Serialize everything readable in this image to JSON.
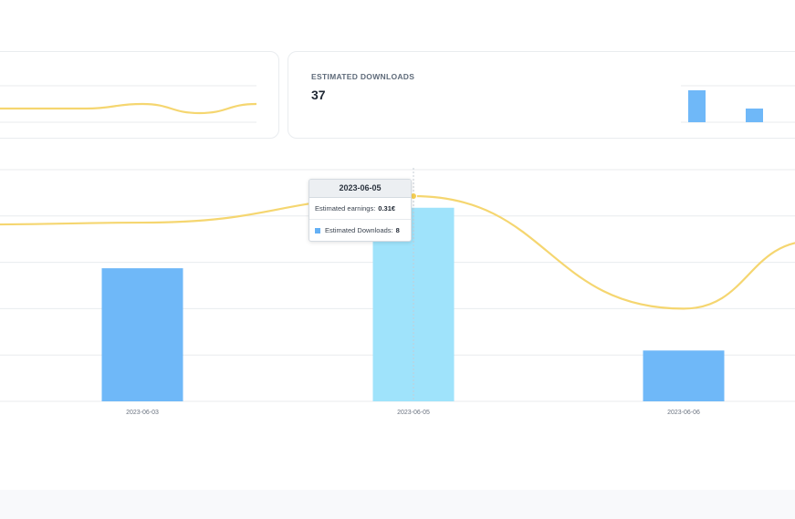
{
  "cards": {
    "earnings": {
      "title": "",
      "value": ""
    },
    "downloads": {
      "title": "ESTIMATED DOWNLOADS",
      "value": "37"
    }
  },
  "colors": {
    "bar": "#6fb8f8",
    "bar_highlight": "#9fe3fb",
    "line": "#f5d670",
    "grid": "#e8ebee"
  },
  "chart_data": [
    {
      "type": "line",
      "x": [
        0,
        1,
        2,
        3,
        4,
        5
      ],
      "values": [
        3,
        3,
        3,
        4,
        2,
        4
      ],
      "ylim": [
        0,
        8
      ]
    },
    {
      "type": "bar",
      "values": [
        7,
        3
      ],
      "ylim": [
        0,
        8
      ]
    },
    {
      "type": "bar",
      "categories": [
        "2023-06-03",
        "2023-06-05",
        "2023-06-06"
      ],
      "series": [
        {
          "name": "Estimated Downloads",
          "values": [
            5.5,
            8,
            2.1
          ]
        }
      ],
      "line_series": [
        {
          "name": "Estimated earnings",
          "values": [
            0.27,
            0.31,
            0.14
          ]
        }
      ],
      "ylim": [
        0,
        9
      ],
      "y2lim": [
        0,
        0.35
      ],
      "grid": true,
      "highlighted": "2023-06-05"
    }
  ],
  "tooltip": {
    "date": "2023-06-05",
    "earnings_label": "Estimated earnings:",
    "earnings_value": "0.31€",
    "downloads_label": "Estimated Downloads:",
    "downloads_value": "8"
  }
}
